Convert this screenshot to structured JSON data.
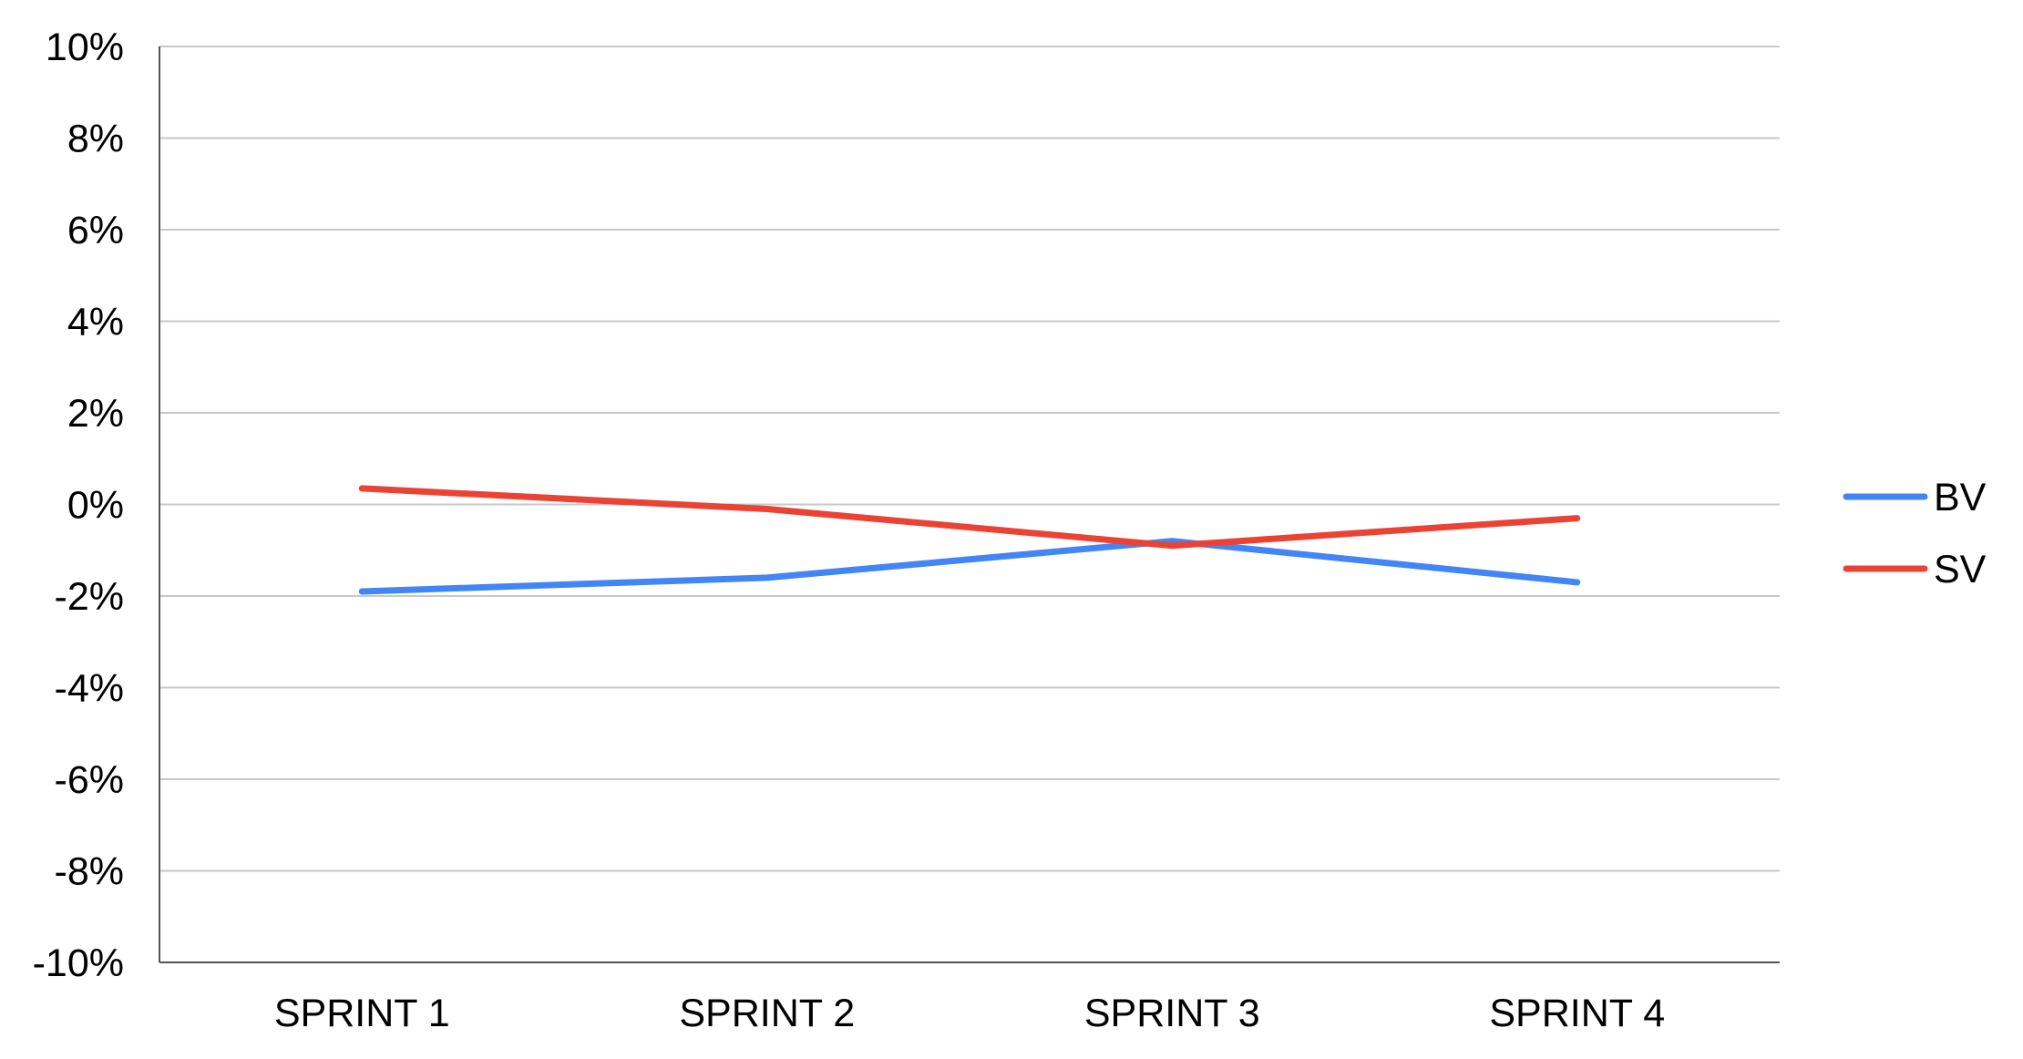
{
  "chart_data": {
    "type": "line",
    "title": "",
    "xlabel": "",
    "ylabel": "",
    "categories": [
      "SPRINT 1",
      "SPRINT 2",
      "SPRINT 3",
      "SPRINT 4"
    ],
    "ylim": [
      -10,
      10
    ],
    "y_ticks": [
      10,
      8,
      6,
      4,
      2,
      0,
      -2,
      -4,
      -6,
      -8,
      -10
    ],
    "y_tick_labels": [
      "10%",
      "8%",
      "6%",
      "4%",
      "2%",
      "0%",
      "-2%",
      "-4%",
      "-6%",
      "-8%",
      "-10%"
    ],
    "grid": true,
    "legend_position": "right",
    "series": [
      {
        "name": "BV",
        "color": "#4285f4",
        "values": [
          -1.9,
          -1.6,
          -0.8,
          -1.7
        ]
      },
      {
        "name": "SV",
        "color": "#ea4335",
        "values": [
          0.35,
          -0.1,
          -0.9,
          -0.3
        ]
      }
    ]
  }
}
